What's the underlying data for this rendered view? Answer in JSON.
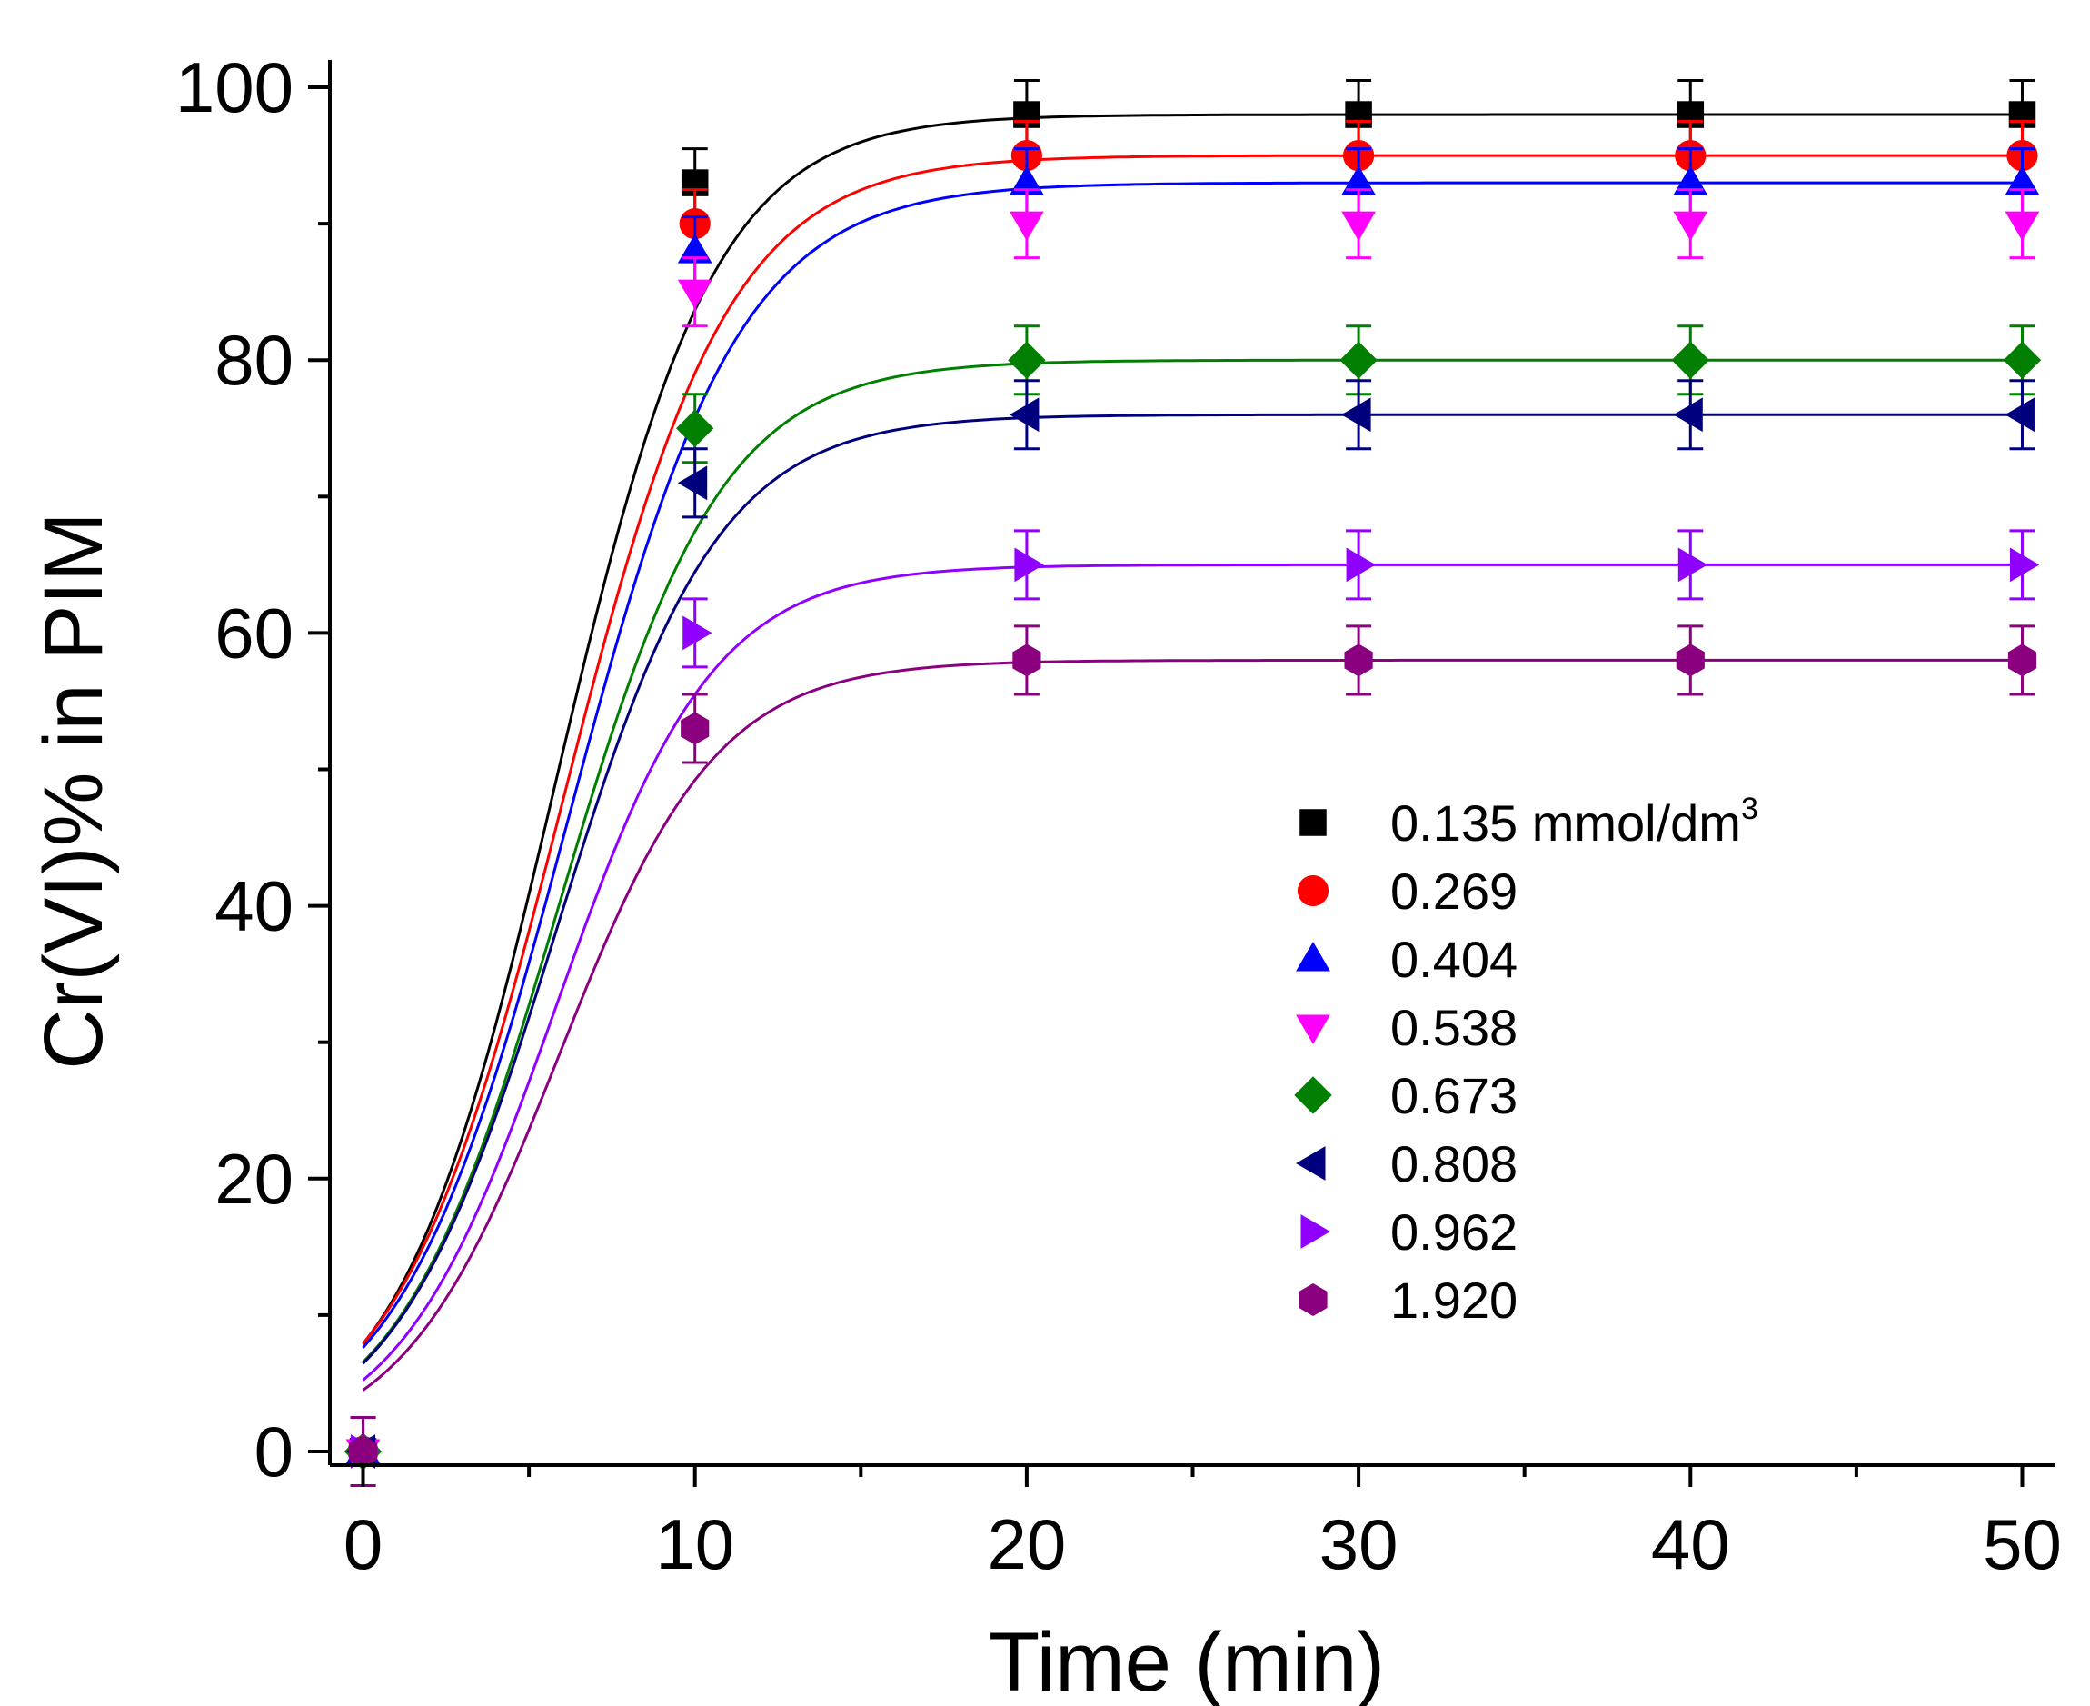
{
  "chart_data": {
    "type": "scatter",
    "title": "",
    "xlabel": "Time (min)",
    "ylabel": "Cr(VI)% in PIM",
    "xlim": [
      -1,
      51
    ],
    "ylim": [
      -1,
      102
    ],
    "xticks": [
      0,
      10,
      20,
      30,
      40,
      50
    ],
    "yticks": [
      0,
      20,
      40,
      60,
      80,
      100
    ],
    "xtick_labels": [
      "0",
      "10",
      "20",
      "30",
      "40",
      "50"
    ],
    "ytick_labels": [
      "0",
      "20",
      "40",
      "60",
      "80",
      "100"
    ],
    "grid": false,
    "legend_position": "center-right",
    "legend_unit": "mmol/dm",
    "legend_unit_sup": "3",
    "x": [
      0,
      10,
      20,
      30,
      40,
      50
    ],
    "error_bar": 2.5,
    "series": [
      {
        "name": "0.135",
        "marker": "square",
        "color": "#000000",
        "line_color": "#000000",
        "values": [
          0,
          93,
          98,
          98,
          98,
          98
        ],
        "fit_a": 98,
        "fit_k": 0.42,
        "fit_t0": 5.8
      },
      {
        "name": "0.269",
        "marker": "circle",
        "color": "#ff0000",
        "line_color": "#ff0000",
        "values": [
          0,
          90,
          95,
          95,
          95,
          95
        ],
        "fit_a": 95,
        "fit_k": 0.4,
        "fit_t0": 6.0
      },
      {
        "name": "0.404",
        "marker": "triangle-up",
        "color": "#0000ff",
        "line_color": "#0000ff",
        "values": [
          0,
          88,
          93,
          93,
          93,
          93
        ],
        "fit_a": 93,
        "fit_k": 0.39,
        "fit_t0": 6.2
      },
      {
        "name": "0.538",
        "marker": "triangle-down",
        "color": "#ff00ff",
        "line_color": null,
        "values": [
          0,
          85,
          90,
          90,
          90,
          90
        ]
      },
      {
        "name": "0.673",
        "marker": "diamond",
        "color": "#007f00",
        "line_color": "#007f00",
        "values": [
          0,
          75,
          80,
          80,
          80,
          80
        ],
        "fit_a": 80,
        "fit_k": 0.41,
        "fit_t0": 5.9
      },
      {
        "name": "0.808",
        "marker": "triangle-left",
        "color": "#00007f",
        "line_color": "#00007f",
        "values": [
          0,
          71,
          76,
          76,
          76,
          76
        ],
        "fit_a": 76,
        "fit_k": 0.41,
        "fit_t0": 5.8
      },
      {
        "name": "0.962",
        "marker": "triangle-right",
        "color": "#8f00ff",
        "line_color": "#8f00ff",
        "values": [
          0,
          60,
          65,
          65,
          65,
          65
        ],
        "fit_a": 65,
        "fit_k": 0.42,
        "fit_t0": 5.8
      },
      {
        "name": "1.920",
        "marker": "hexagon",
        "color": "#8a007f",
        "line_color": "#8a007f",
        "values": [
          0,
          53,
          58,
          58,
          58,
          58
        ],
        "fit_a": 58,
        "fit_k": 0.42,
        "fit_t0": 5.9
      }
    ]
  }
}
